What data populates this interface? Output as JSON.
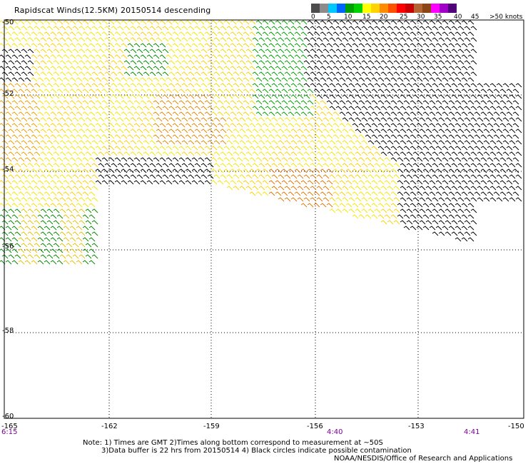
{
  "title": "Rapidscat Winds(12.5KM) 20150514 descending",
  "legend": {
    "colors": [
      "#4d4d4d",
      "#8c8c8c",
      "#00c8ff",
      "#0064ff",
      "#00a000",
      "#00d200",
      "#ffff00",
      "#ffd200",
      "#ff8c00",
      "#ff5000",
      "#ff0000",
      "#c80000",
      "#b46432",
      "#8c4614",
      "#ff00ff",
      "#a000c8",
      "#500078"
    ],
    "labels": [
      "0",
      "5",
      "10",
      "15",
      "20",
      "25",
      "30",
      "35",
      "40",
      "45",
      ">50 knots"
    ]
  },
  "axes": {
    "x_ticks": [
      "-165",
      "-162",
      "-159",
      "-156",
      "-153",
      "-150"
    ],
    "y_ticks": [
      "-50",
      "-52",
      "-54",
      "-56",
      "-58",
      "-60"
    ]
  },
  "times": [
    "6:15",
    "4:40",
    "4:41"
  ],
  "notes": [
    "Note: 1) Times are GMT 2)Times along bottom correspond to measurement at ~50S",
    "3)Data buffer is 22 hrs from 20150514 4) Black circles indicate possible contamination"
  ],
  "credit": "NOAA/NESDIS/Office of Research and Applications"
}
